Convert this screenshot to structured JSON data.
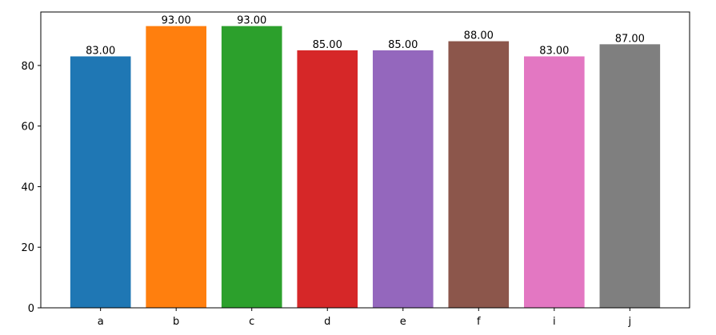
{
  "chart_data": {
    "type": "bar",
    "categories": [
      "a",
      "b",
      "c",
      "d",
      "e",
      "f",
      "i",
      "j"
    ],
    "values": [
      83,
      93,
      93,
      85,
      85,
      88,
      83,
      87
    ],
    "value_labels": [
      "83.00",
      "93.00",
      "93.00",
      "85.00",
      "85.00",
      "88.00",
      "83.00",
      "87.00"
    ],
    "colors": [
      "#1f77b4",
      "#ff7f0e",
      "#2ca02c",
      "#d62728",
      "#9467bd",
      "#8c564b",
      "#e377c2",
      "#7f7f7f"
    ],
    "ylim": [
      0,
      97.65
    ],
    "yticks": [
      0,
      20,
      40,
      60,
      80
    ],
    "grid": false
  }
}
